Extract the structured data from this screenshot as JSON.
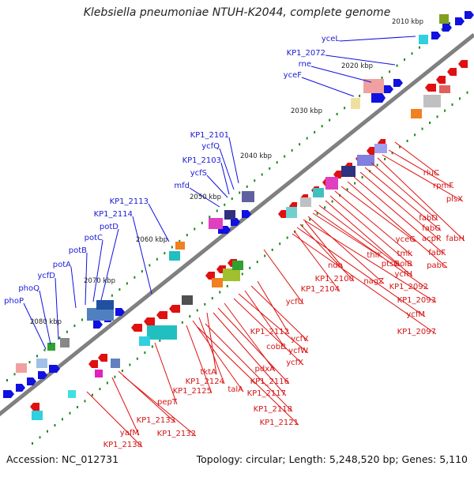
{
  "title": "Klebsiella pneumoniae NTUH-K2044, complete genome",
  "footer": {
    "accession": "Accession: NC_012731",
    "summary": "Topology: circular; Length: 5,248,520 bp; Genes: 5,110"
  },
  "colors": {
    "forward": "#1010e0",
    "reverse": "#e01010",
    "backbone": "#808080",
    "ticks": "#1a8a1a"
  },
  "scale_labels": [
    "2010 kbp",
    "2020 kbp",
    "2030 kbp",
    "2040 kbp",
    "2050 kbp",
    "2060 kbp",
    "2070 kbp",
    "2080 kbp"
  ],
  "forward_labels": [
    "yceL",
    "KP1_2072",
    "rne",
    "yceF",
    "KP1_2101",
    "ycfQ",
    "KP1_2103",
    "ycfS",
    "mfd",
    "KP1_2113",
    "KP1_2114",
    "potD",
    "potC",
    "potB",
    "potA",
    "ycfD",
    "phoQ",
    "phoP"
  ],
  "reverse_labels": [
    "rluC",
    "rpmF",
    "plsX",
    "fabH",
    "fabD",
    "fabG",
    "acpP",
    "fabF",
    "pabC",
    "yceG",
    "tmk",
    "holB",
    "ycfH",
    "ptsG",
    "KP1_2092",
    "thiK",
    "nagZ",
    "KP1_2093",
    "ndh",
    "KP1_2100",
    "ycfM",
    "KP1_2104",
    "KP1_2097",
    "ycfU",
    "KP1_2112",
    "ycfV",
    "cobB",
    "ycfW",
    "ycfX",
    "pdxA",
    "KP1_2116",
    "tktA",
    "KP1_2117",
    "KP1_2124",
    "talA",
    "KP1_2118",
    "KP1_2125",
    "KP1_2121",
    "pepT",
    "KP1_2133",
    "yafM",
    "KP1_2132",
    "KP1_2138"
  ]
}
